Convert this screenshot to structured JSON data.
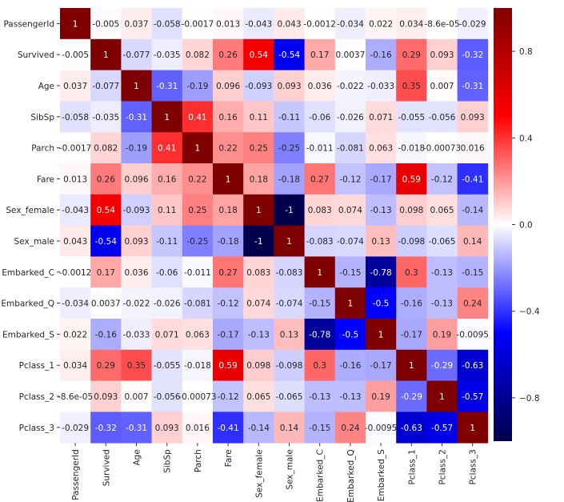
{
  "chart_data": {
    "type": "heatmap",
    "title": "",
    "xlabel": "",
    "ylabel": "",
    "labels": [
      "PassengerId",
      "Survived",
      "Age",
      "SibSp",
      "Parch",
      "Fare",
      "Sex_female",
      "Sex_male",
      "Embarked_C",
      "Embarked_Q",
      "Embarked_S",
      "Pclass_1",
      "Pclass_2",
      "Pclass_3"
    ],
    "values": [
      [
        "1",
        "-0.005",
        "0.037",
        "-0.058",
        "-0.0017",
        "0.013",
        "-0.043",
        "0.043",
        "-0.0012",
        "-0.034",
        "0.022",
        "0.034",
        "-8.6e-05",
        "-0.029"
      ],
      [
        "-0.005",
        "1",
        "-0.077",
        "-0.035",
        "0.082",
        "0.26",
        "0.54",
        "-0.54",
        "0.17",
        "0.0037",
        "-0.16",
        "0.29",
        "0.093",
        "-0.32"
      ],
      [
        "0.037",
        "-0.077",
        "1",
        "-0.31",
        "-0.19",
        "0.096",
        "-0.093",
        "0.093",
        "0.036",
        "-0.022",
        "-0.033",
        "0.35",
        "0.007",
        "-0.31"
      ],
      [
        "-0.058",
        "-0.035",
        "-0.31",
        "1",
        "0.41",
        "0.16",
        "0.11",
        "-0.11",
        "-0.06",
        "-0.026",
        "0.071",
        "-0.055",
        "-0.056",
        "0.093"
      ],
      [
        "-0.0017",
        "0.082",
        "-0.19",
        "0.41",
        "1",
        "0.22",
        "0.25",
        "-0.25",
        "-0.011",
        "-0.081",
        "0.063",
        "-0.018",
        "-0.00073",
        "0.016"
      ],
      [
        "0.013",
        "0.26",
        "0.096",
        "0.16",
        "0.22",
        "1",
        "0.18",
        "-0.18",
        "0.27",
        "-0.12",
        "-0.17",
        "0.59",
        "-0.12",
        "-0.41"
      ],
      [
        "-0.043",
        "0.54",
        "-0.093",
        "0.11",
        "0.25",
        "0.18",
        "1",
        "-1",
        "0.083",
        "0.074",
        "-0.13",
        "0.098",
        "0.065",
        "-0.14"
      ],
      [
        "0.043",
        "-0.54",
        "0.093",
        "-0.11",
        "-0.25",
        "-0.18",
        "-1",
        "1",
        "-0.083",
        "-0.074",
        "0.13",
        "-0.098",
        "-0.065",
        "0.14"
      ],
      [
        "-0.0012",
        "0.17",
        "0.036",
        "-0.06",
        "-0.011",
        "0.27",
        "0.083",
        "-0.083",
        "1",
        "-0.15",
        "-0.78",
        "0.3",
        "-0.13",
        "-0.15"
      ],
      [
        "-0.034",
        "0.0037",
        "-0.022",
        "-0.026",
        "-0.081",
        "-0.12",
        "0.074",
        "-0.074",
        "-0.15",
        "1",
        "-0.5",
        "-0.16",
        "-0.13",
        "0.24"
      ],
      [
        "0.022",
        "-0.16",
        "-0.033",
        "0.071",
        "0.063",
        "-0.17",
        "-0.13",
        "0.13",
        "-0.78",
        "-0.5",
        "1",
        "-0.17",
        "0.19",
        "-0.0095"
      ],
      [
        "0.034",
        "0.29",
        "0.35",
        "-0.055",
        "-0.018",
        "0.59",
        "0.098",
        "-0.098",
        "0.3",
        "-0.16",
        "-0.17",
        "1",
        "-0.29",
        "-0.63"
      ],
      [
        "-8.6e-05",
        "0.093",
        "0.007",
        "-0.056",
        "-0.00073",
        "-0.12",
        "0.065",
        "-0.065",
        "-0.13",
        "-0.13",
        "0.19",
        "-0.29",
        "1",
        "-0.57"
      ],
      [
        "-0.029",
        "-0.32",
        "-0.31",
        "0.093",
        "0.016",
        "-0.41",
        "-0.14",
        "0.14",
        "-0.15",
        "0.24",
        "-0.0095",
        "-0.63",
        "-0.57",
        "1"
      ]
    ],
    "colorscale": {
      "name": "seismic",
      "vmin": -1,
      "vmax": 1,
      "stops": [
        {
          "value": -1,
          "color": "#00004c"
        },
        {
          "value": -0.5,
          "color": "#0000ff"
        },
        {
          "value": 0,
          "color": "#ffffff"
        },
        {
          "value": 0.5,
          "color": "#ff0000"
        },
        {
          "value": 1,
          "color": "#7f0000"
        }
      ]
    },
    "colorbar_ticks": [
      {
        "value": 0.8,
        "label": "0.8"
      },
      {
        "value": 0.4,
        "label": "0.4"
      },
      {
        "value": 0.0,
        "label": "0.0"
      },
      {
        "value": -0.4,
        "label": "−0.4"
      },
      {
        "value": -0.8,
        "label": "−0.8"
      }
    ],
    "annotations": true,
    "grid": false,
    "legend": "colorbar-right"
  }
}
